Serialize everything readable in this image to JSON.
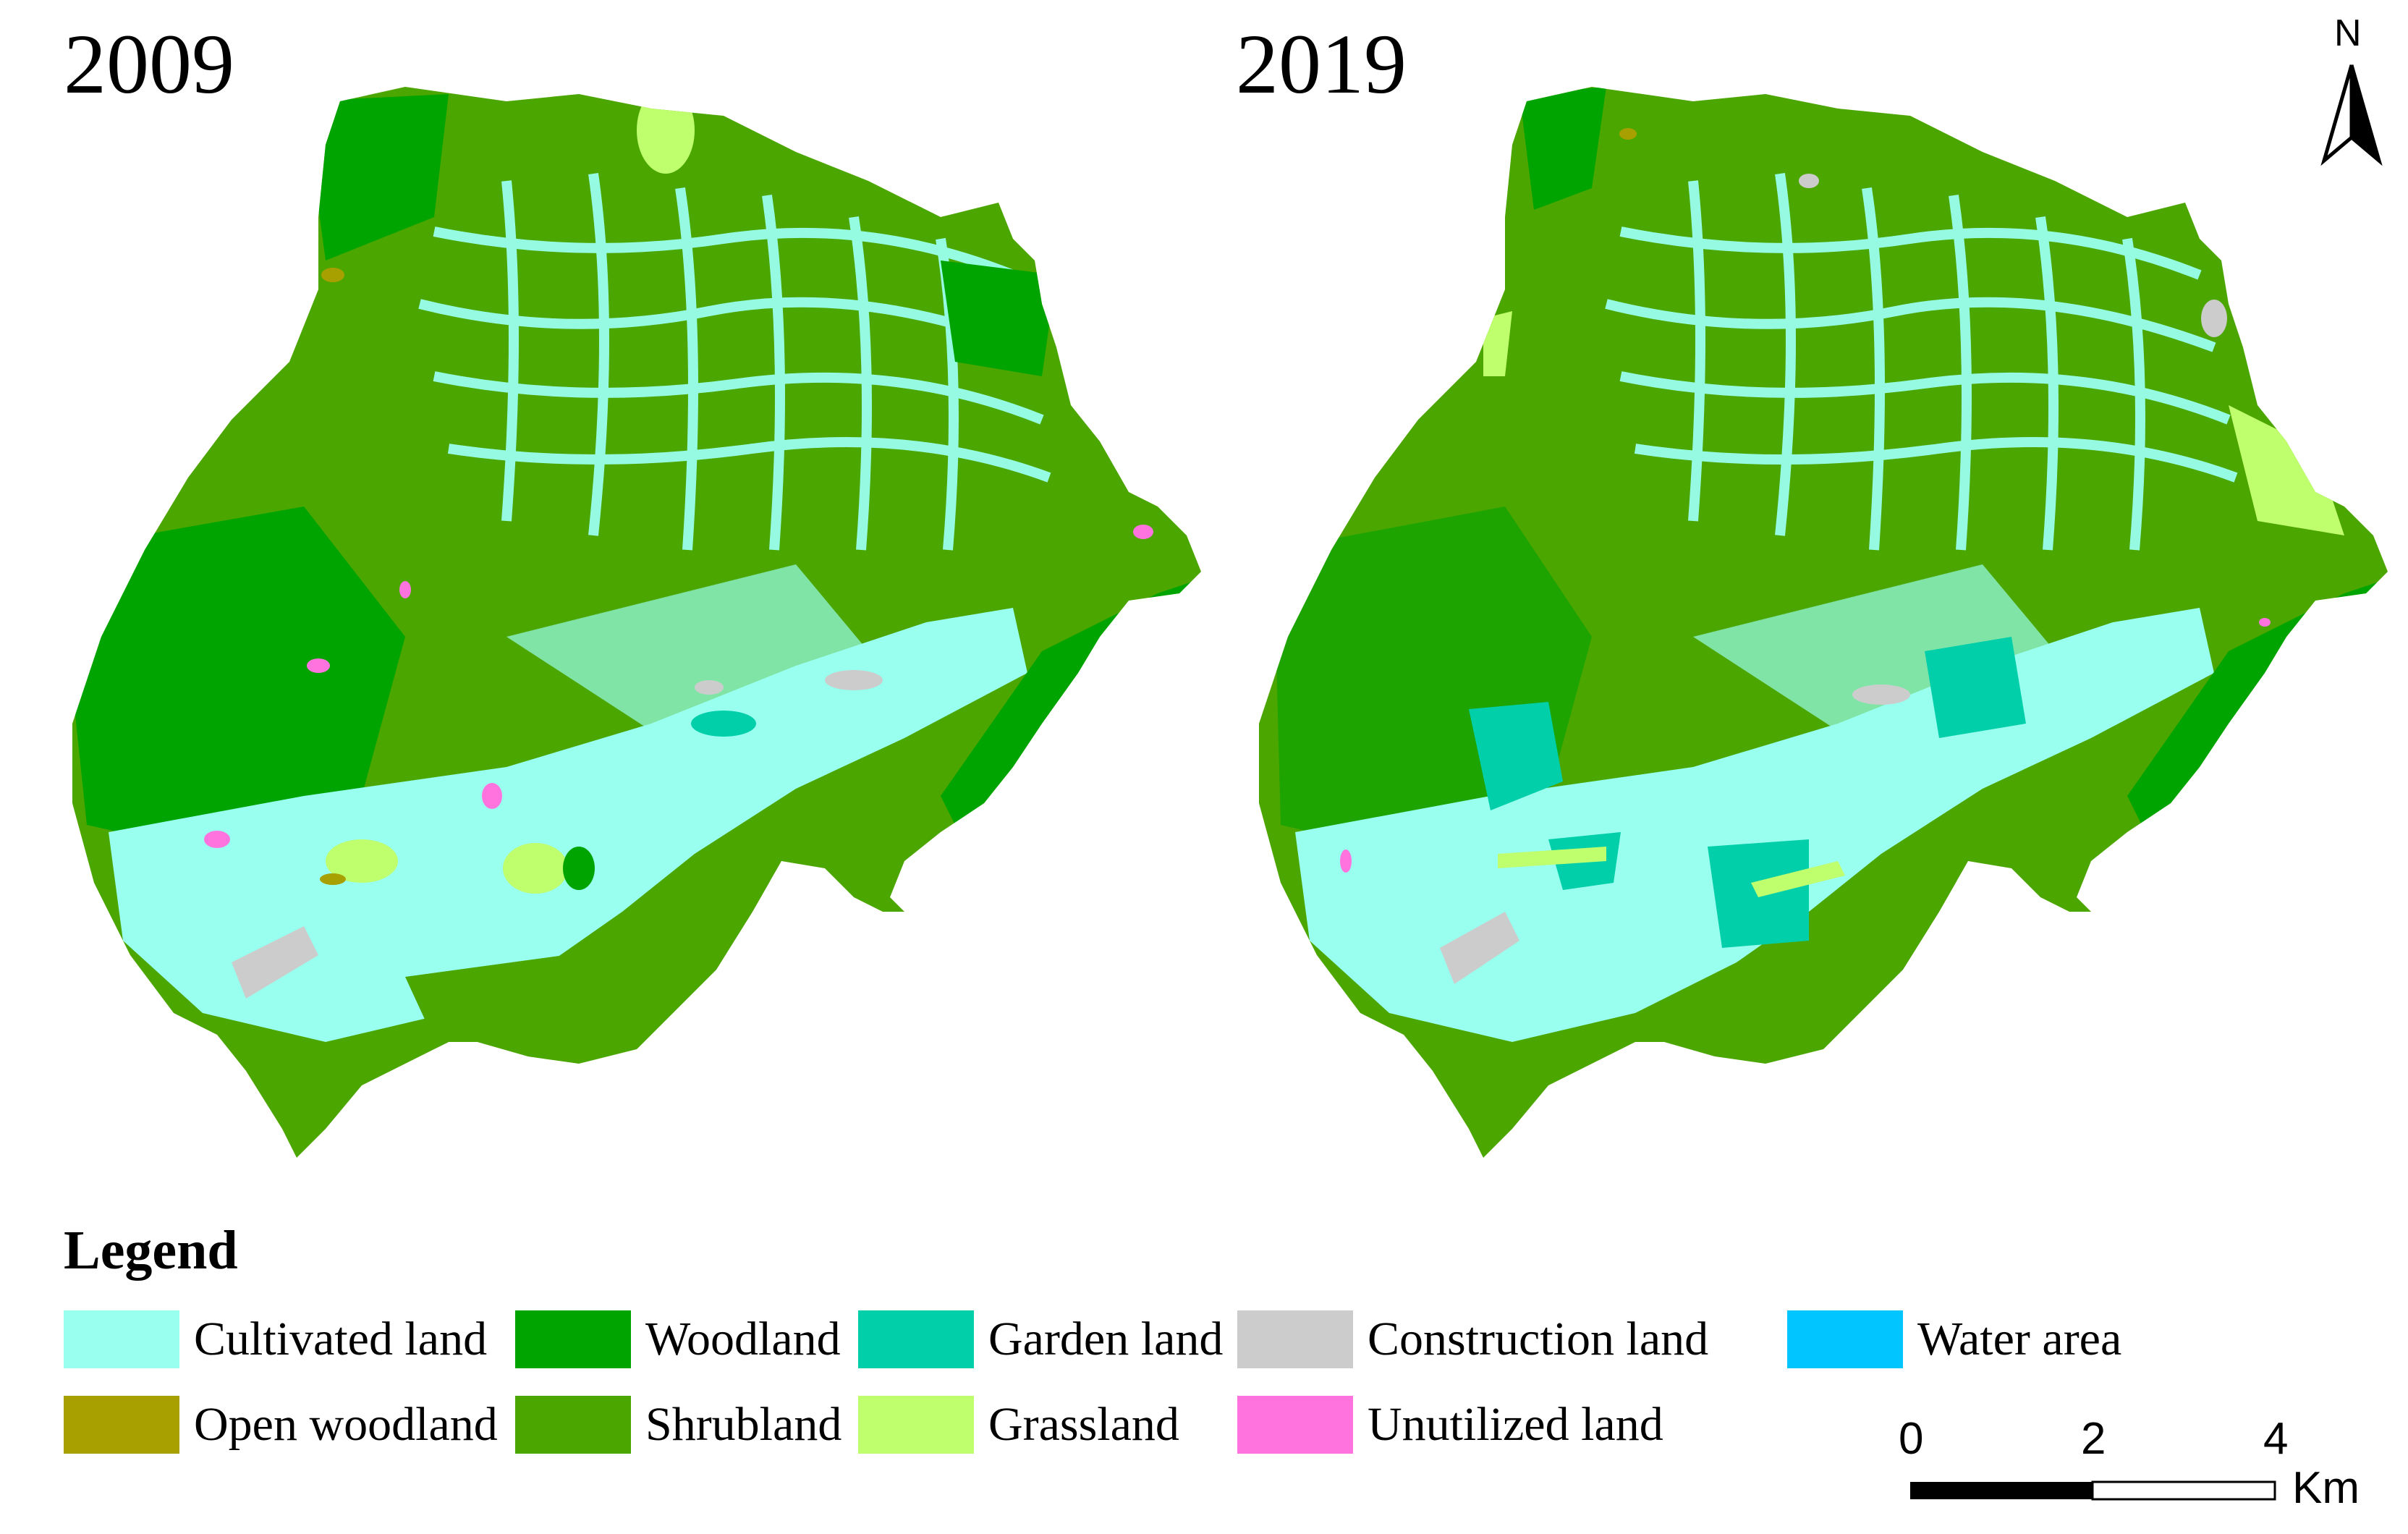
{
  "maps": [
    {
      "year": "2009"
    },
    {
      "year": "2019"
    }
  ],
  "north_arrow": {
    "label": "N"
  },
  "legend": {
    "title": "Legend",
    "items": [
      {
        "label": "Cultivated land",
        "color": "#99FFEE"
      },
      {
        "label": "Woodland",
        "color": "#00A400"
      },
      {
        "label": "Garden land",
        "color": "#00CFAA"
      },
      {
        "label": "Construction land",
        "color": "#CCCCCC"
      },
      {
        "label": "Water area",
        "color": "#00C5FF"
      },
      {
        "label": "Open woodland",
        "color": "#A8A000"
      },
      {
        "label": "Shrubland",
        "color": "#4CA600"
      },
      {
        "label": "Grassland",
        "color": "#BFFF6E"
      },
      {
        "label": "Unutilized land",
        "color": "#FF73DF"
      }
    ]
  },
  "scale_bar": {
    "ticks": [
      "0",
      "2",
      "4"
    ],
    "unit": "Km"
  }
}
